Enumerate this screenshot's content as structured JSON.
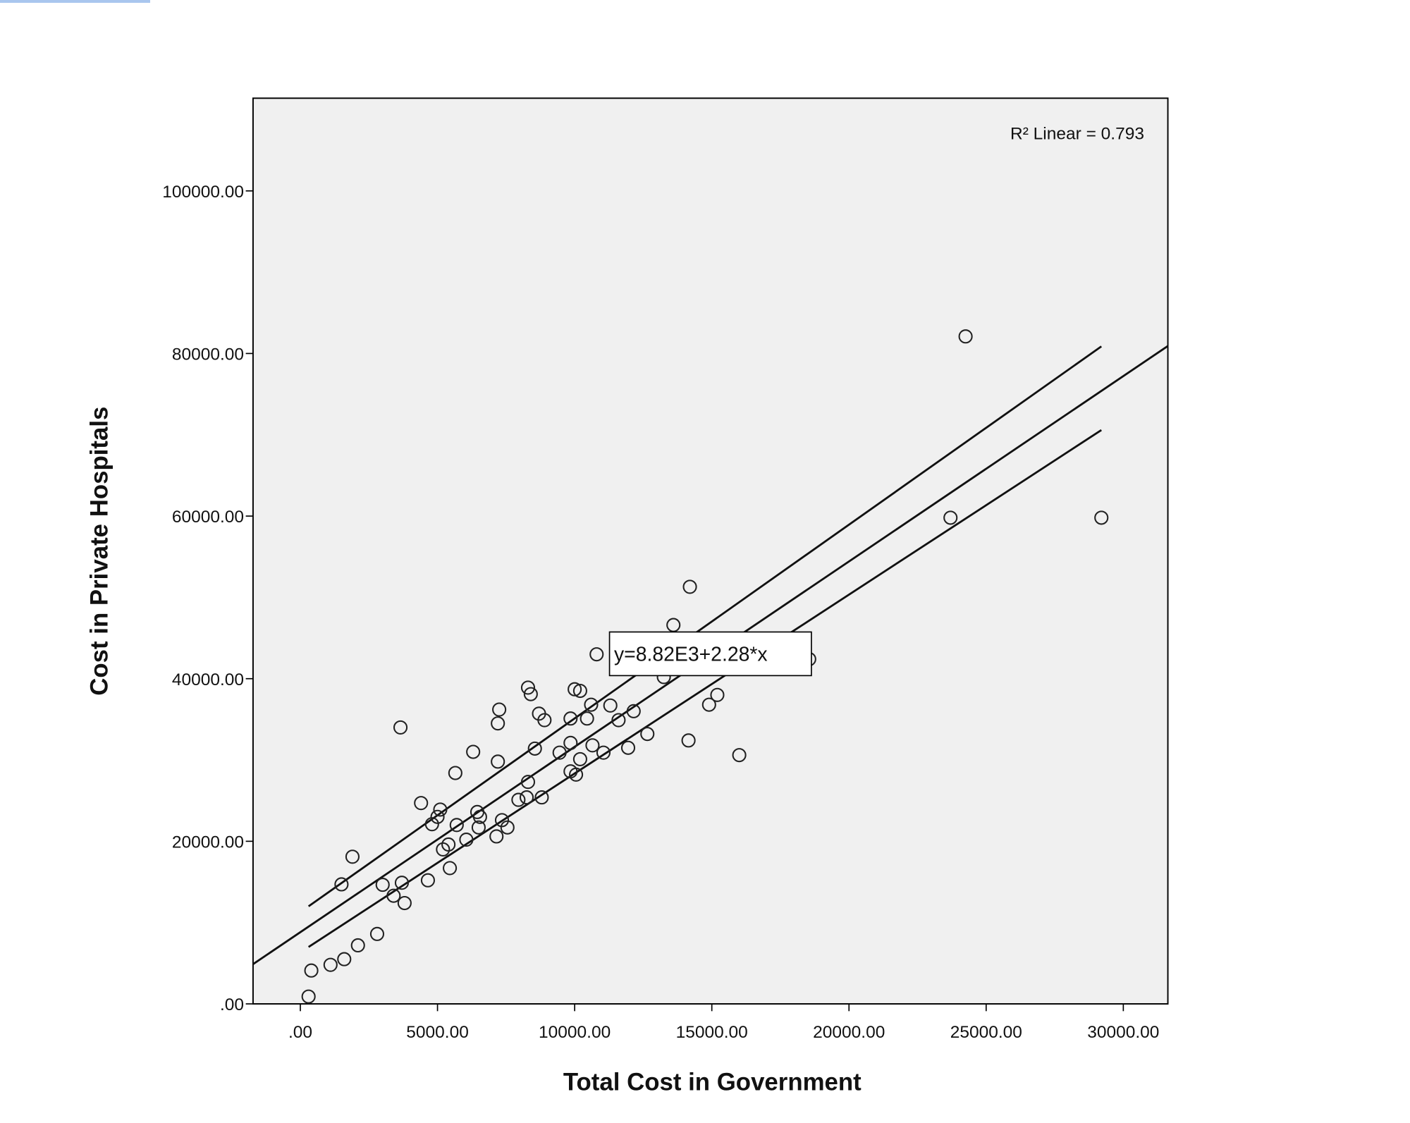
{
  "chart_data": {
    "type": "scatter",
    "xlabel": "Total Cost in Government",
    "ylabel": "Cost in Private Hospitals",
    "xlim": [
      -1724,
      31624
    ],
    "ylim": [
      0,
      111400
    ],
    "xticks": [
      0,
      5000,
      10000,
      15000,
      20000,
      25000,
      30000
    ],
    "xtick_labels": [
      ".00",
      "5000.00",
      "10000.00",
      "15000.00",
      "20000.00",
      "25000.00",
      "30000.00"
    ],
    "yticks": [
      0,
      20000,
      40000,
      60000,
      80000,
      100000
    ],
    "ytick_labels": [
      ".00",
      "20000.00",
      "40000.00",
      "60000.00",
      "80000.00",
      "100000.00"
    ],
    "grid": false,
    "background": "#f0f0f0",
    "marker": "open-circle",
    "points": [
      [
        300,
        900
      ],
      [
        400,
        4100
      ],
      [
        1100,
        4800
      ],
      [
        1600,
        5500
      ],
      [
        2100,
        7200
      ],
      [
        2800,
        8600
      ],
      [
        1500,
        14700
      ],
      [
        1900,
        18100
      ],
      [
        3000,
        14650
      ],
      [
        3400,
        13300
      ],
      [
        3700,
        14900
      ],
      [
        3800,
        12400
      ],
      [
        3650,
        34000
      ],
      [
        4400,
        24700
      ],
      [
        4650,
        15200
      ],
      [
        4800,
        22100
      ],
      [
        5000,
        23000
      ],
      [
        5100,
        23900
      ],
      [
        5200,
        19000
      ],
      [
        5400,
        19600
      ],
      [
        5450,
        16700
      ],
      [
        5650,
        28400
      ],
      [
        5700,
        22000
      ],
      [
        6050,
        20200
      ],
      [
        6300,
        31000
      ],
      [
        6450,
        23600
      ],
      [
        6550,
        23000
      ],
      [
        6500,
        21700
      ],
      [
        7200,
        29800
      ],
      [
        7200,
        34500
      ],
      [
        7250,
        36200
      ],
      [
        7150,
        20600
      ],
      [
        7350,
        22600
      ],
      [
        7550,
        21700
      ],
      [
        7950,
        25100
      ],
      [
        8250,
        25400
      ],
      [
        8300,
        27300
      ],
      [
        8300,
        38900
      ],
      [
        8400,
        38100
      ],
      [
        8550,
        31400
      ],
      [
        8700,
        35700
      ],
      [
        8900,
        34900
      ],
      [
        8800,
        25400
      ],
      [
        9450,
        30900
      ],
      [
        9850,
        32100
      ],
      [
        9850,
        35100
      ],
      [
        9850,
        28600
      ],
      [
        10050,
        28200
      ],
      [
        10000,
        38700
      ],
      [
        10200,
        38500
      ],
      [
        10200,
        30100
      ],
      [
        10450,
        35100
      ],
      [
        10600,
        36800
      ],
      [
        10650,
        31800
      ],
      [
        10800,
        43000
      ],
      [
        11050,
        30900
      ],
      [
        11300,
        36700
      ],
      [
        11600,
        34900
      ],
      [
        11950,
        31500
      ],
      [
        12150,
        36000
      ],
      [
        12650,
        33200
      ],
      [
        13250,
        40200
      ],
      [
        13600,
        46600
      ],
      [
        14150,
        32400
      ],
      [
        14200,
        51300
      ],
      [
        14900,
        36800
      ],
      [
        15200,
        38000
      ],
      [
        16000,
        30600
      ],
      [
        18550,
        42400
      ],
      [
        23700,
        59800
      ],
      [
        24250,
        82100
      ],
      [
        29200,
        59800
      ]
    ],
    "fit": {
      "intercept": 8820,
      "slope": 2.28,
      "label": "y=8.82E3+2.28*x"
    },
    "ci_upper": [
      [
        300,
        12000
      ],
      [
        29200,
        80870
      ]
    ],
    "ci_lower": [
      [
        300,
        7000
      ],
      [
        29200,
        70580
      ]
    ],
    "r2_label": "R² Linear = 0.793"
  }
}
